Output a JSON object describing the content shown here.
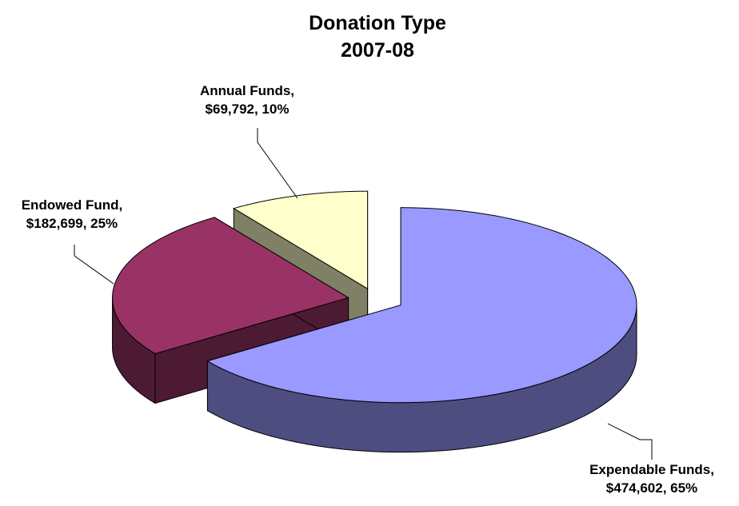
{
  "chart_data": {
    "type": "pie3d",
    "title": "Donation Type",
    "subtitle": "2007-08",
    "values": [
      474602,
      182699,
      69792
    ],
    "value_labels": [
      [
        "Expendable Funds,",
        "$474,602, 65%"
      ],
      [
        "Endowed Fund,",
        "$182,699, 25%"
      ],
      [
        "Annual Funds,",
        "$69,792, 10%"
      ]
    ],
    "colors": [
      "#9999ff",
      "#993366",
      "#ffffcc"
    ],
    "side_colors": [
      "#4d4d80",
      "#4d1a33",
      "#808066"
    ]
  }
}
